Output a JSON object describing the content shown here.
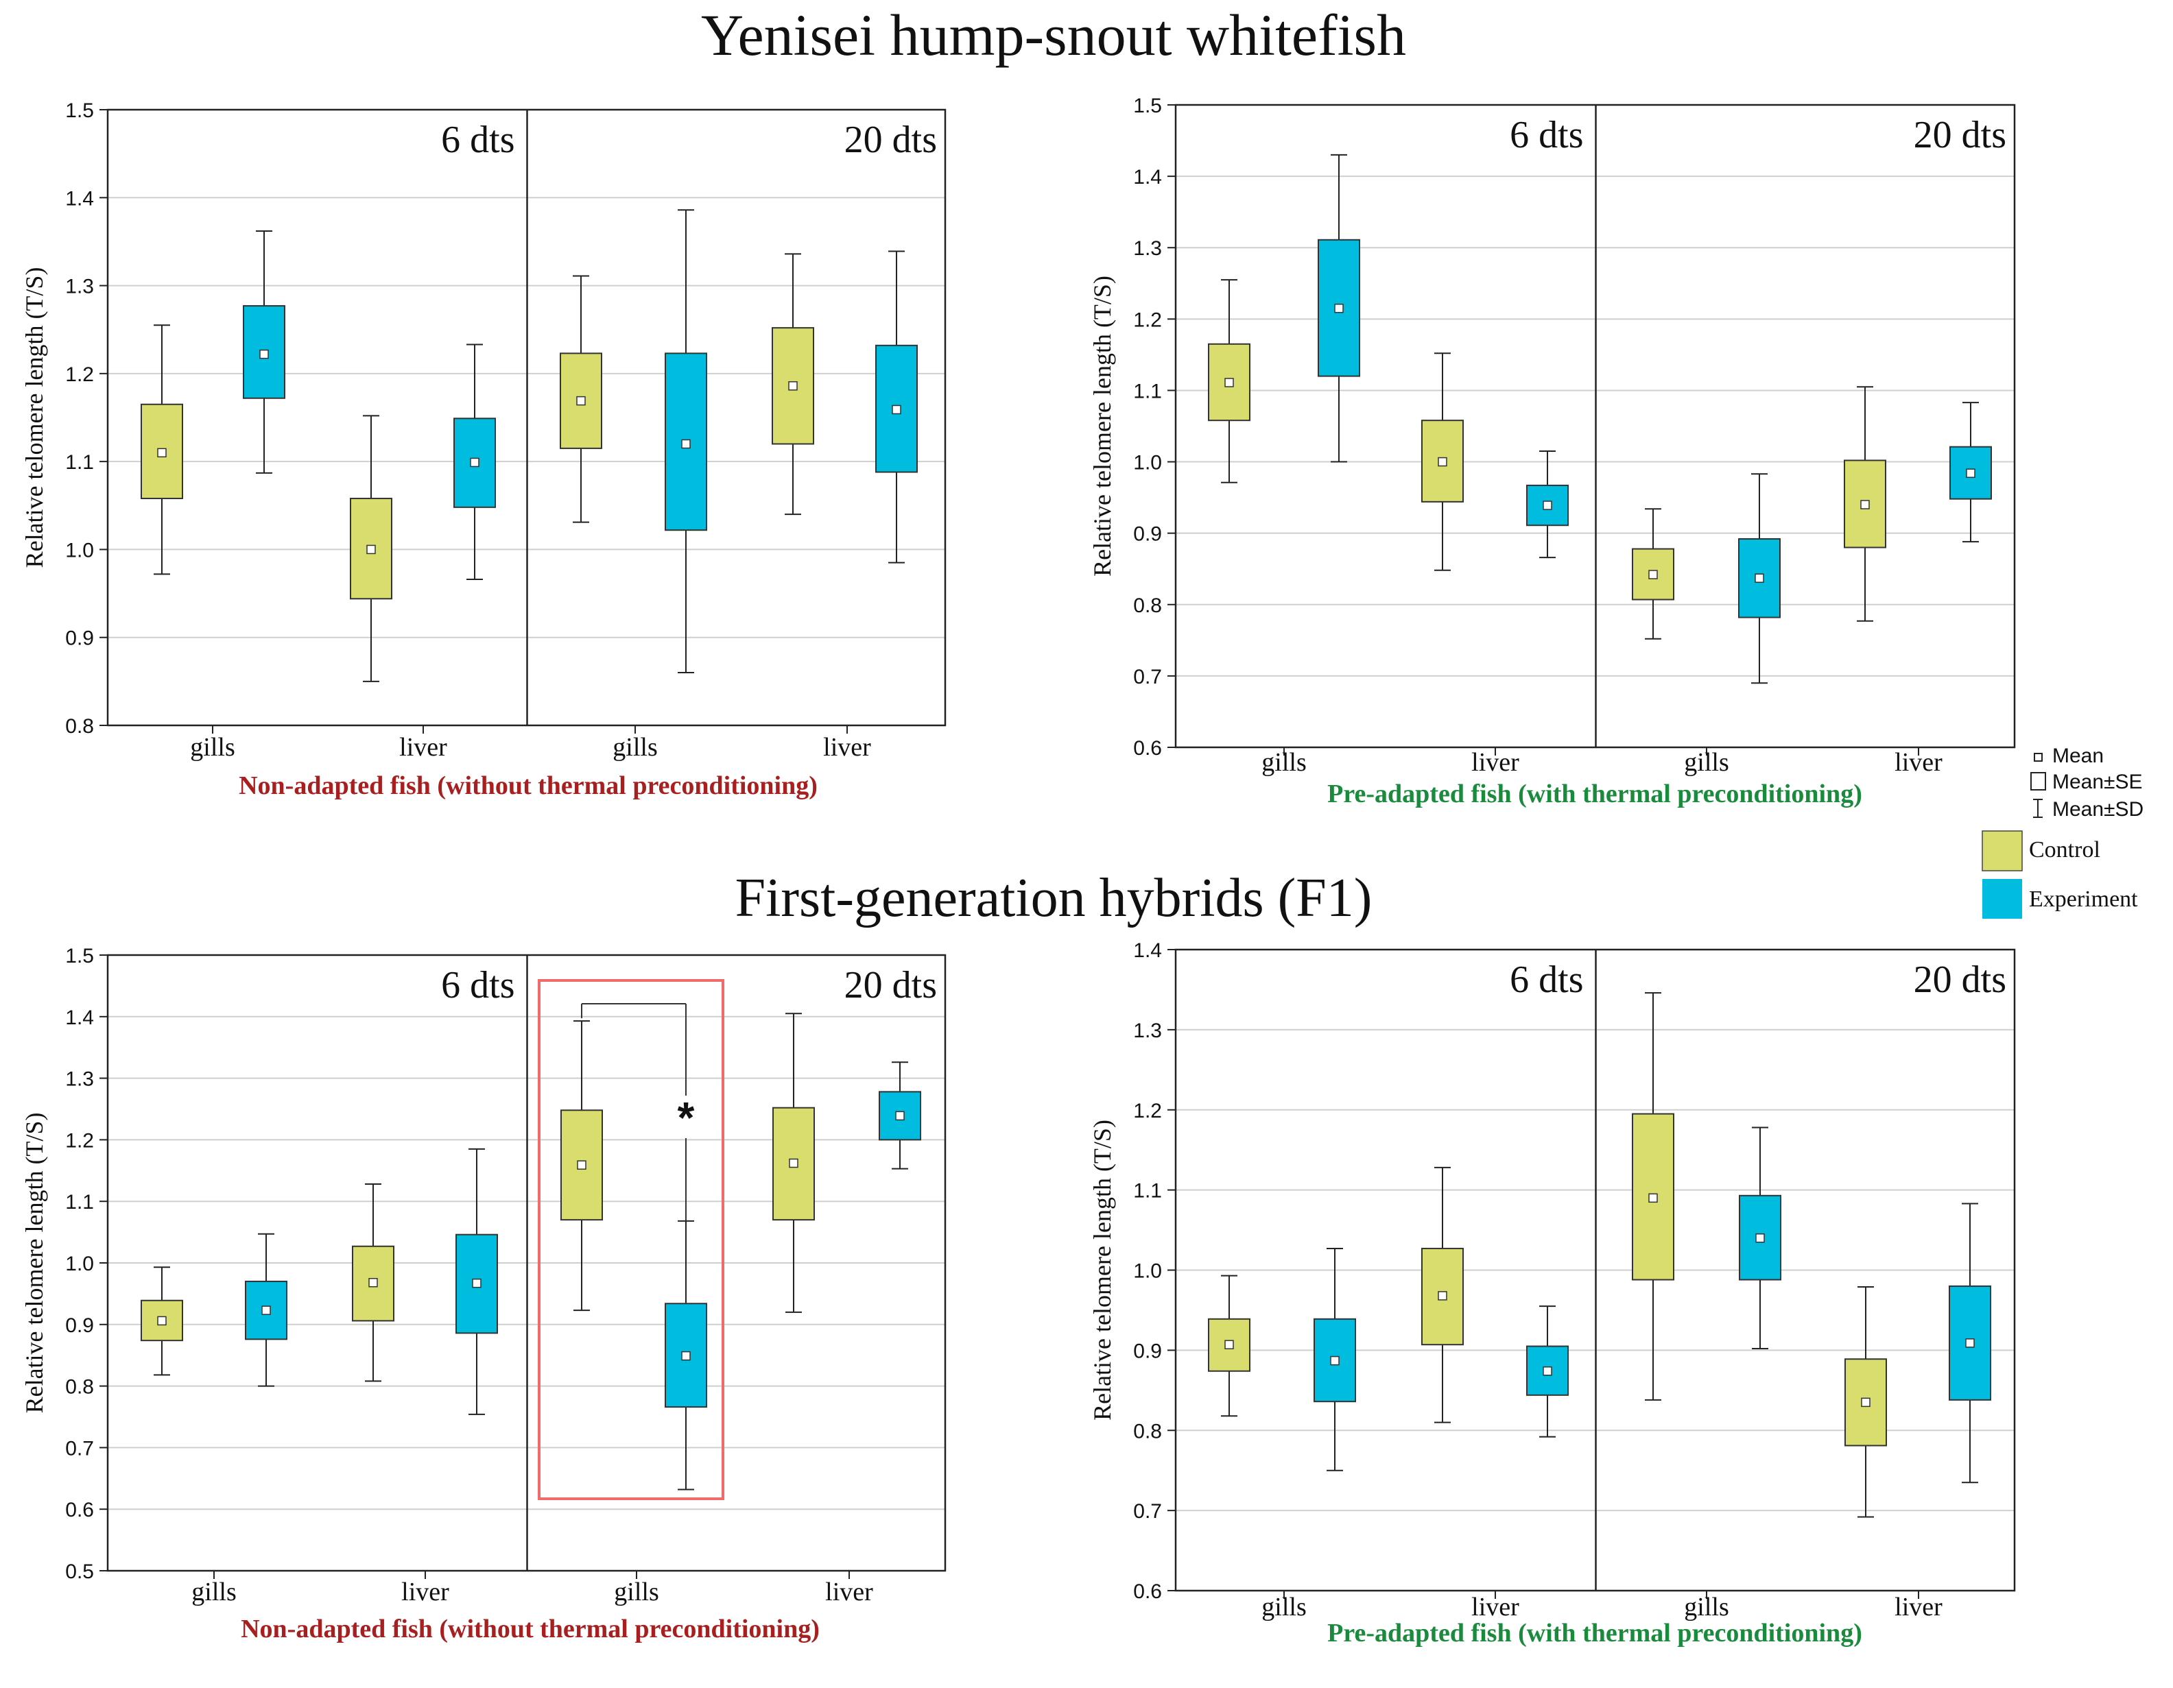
{
  "figure": {
    "top_title": "Yenisei hump-snout whitefish",
    "bottom_title": "First-generation hybrids (F1)"
  },
  "colors": {
    "control": "#D9DD6E",
    "experiment": "#00BCDE",
    "highlight": "#F26B6B",
    "nonadapted_label": "#A81F1F",
    "preadapted_label": "#1A8A3C"
  },
  "legend": {
    "mean": "Mean",
    "se": "Mean±SE",
    "sd": "Mean±SD",
    "control": "Control",
    "experiment": "Experiment"
  },
  "chart_data": [
    {
      "id": "p1",
      "type": "box",
      "ylabel": "Relative telomere length (T/S)",
      "ylim": [
        0.8,
        1.5
      ],
      "yticks": [
        "0.8",
        "0.9",
        "1.0",
        "1.1",
        "1.2",
        "1.3",
        "1.4",
        "1.5"
      ],
      "section_labels": [
        "6 dts",
        "20 dts"
      ],
      "categories": [
        "gills",
        "liver",
        "gills",
        "liver"
      ],
      "caption": "Non-adapted fish (without thermal preconditioning)",
      "boxes": [
        {
          "group": "Control",
          "mean": 1.11,
          "se": [
            1.058,
            1.165
          ],
          "sd": [
            0.972,
            1.255
          ]
        },
        {
          "group": "Experiment",
          "mean": 1.222,
          "se": [
            1.172,
            1.277
          ],
          "sd": [
            1.087,
            1.362
          ]
        },
        {
          "group": "Control",
          "mean": 1.0,
          "se": [
            0.944,
            1.058
          ],
          "sd": [
            0.85,
            1.152
          ]
        },
        {
          "group": "Experiment",
          "mean": 1.099,
          "se": [
            1.048,
            1.149
          ],
          "sd": [
            0.966,
            1.233
          ]
        },
        {
          "group": "Control",
          "mean": 1.169,
          "se": [
            1.115,
            1.223
          ],
          "sd": [
            1.031,
            1.311
          ]
        },
        {
          "group": "Experiment",
          "mean": 1.12,
          "se": [
            1.022,
            1.223
          ],
          "sd": [
            0.86,
            1.386
          ]
        },
        {
          "group": "Control",
          "mean": 1.186,
          "se": [
            1.12,
            1.252
          ],
          "sd": [
            1.04,
            1.336
          ]
        },
        {
          "group": "Experiment",
          "mean": 1.159,
          "se": [
            1.088,
            1.232
          ],
          "sd": [
            0.985,
            1.339
          ]
        }
      ]
    },
    {
      "id": "p2",
      "type": "box",
      "ylabel": "Relative telomere length (T/S)",
      "ylim": [
        0.6,
        1.5
      ],
      "yticks": [
        "0.6",
        "0.7",
        "0.8",
        "0.9",
        "1.0",
        "1.1",
        "1.2",
        "1.3",
        "1.4",
        "1.5"
      ],
      "section_labels": [
        "6 dts",
        "20 dts"
      ],
      "categories": [
        "gills",
        "liver",
        "gills",
        "liver"
      ],
      "caption": "Pre-adapted fish (with thermal preconditioning)",
      "boxes": [
        {
          "group": "Control",
          "mean": 1.111,
          "se": [
            1.058,
            1.165
          ],
          "sd": [
            0.971,
            1.255
          ]
        },
        {
          "group": "Experiment",
          "mean": 1.215,
          "se": [
            1.12,
            1.311
          ],
          "sd": [
            1.0,
            1.43
          ]
        },
        {
          "group": "Control",
          "mean": 1.0,
          "se": [
            0.944,
            1.058
          ],
          "sd": [
            0.848,
            1.152
          ]
        },
        {
          "group": "Experiment",
          "mean": 0.939,
          "se": [
            0.911,
            0.967
          ],
          "sd": [
            0.866,
            1.015
          ]
        },
        {
          "group": "Control",
          "mean": 0.842,
          "se": [
            0.807,
            0.878
          ],
          "sd": [
            0.752,
            0.934
          ]
        },
        {
          "group": "Experiment",
          "mean": 0.837,
          "se": [
            0.782,
            0.892
          ],
          "sd": [
            0.69,
            0.983
          ]
        },
        {
          "group": "Control",
          "mean": 0.94,
          "se": [
            0.88,
            1.002
          ],
          "sd": [
            0.777,
            1.105
          ]
        },
        {
          "group": "Experiment",
          "mean": 0.984,
          "se": [
            0.948,
            1.021
          ],
          "sd": [
            0.888,
            1.083
          ]
        }
      ]
    },
    {
      "id": "p3",
      "type": "box",
      "ylabel": "Relative telomere length (T/S)",
      "ylim": [
        0.5,
        1.5
      ],
      "yticks": [
        "0.5",
        "0.6",
        "0.7",
        "0.8",
        "0.9",
        "1.0",
        "1.1",
        "1.2",
        "1.3",
        "1.4",
        "1.5"
      ],
      "section_labels": [
        "6 dts",
        "20 dts"
      ],
      "categories": [
        "gills",
        "liver",
        "gills",
        "liver"
      ],
      "caption": "Non-adapted fish (without thermal preconditioning)",
      "significance": "*",
      "boxes": [
        {
          "group": "Control",
          "mean": 0.906,
          "se": [
            0.874,
            0.939
          ],
          "sd": [
            0.818,
            0.993
          ]
        },
        {
          "group": "Experiment",
          "mean": 0.923,
          "se": [
            0.876,
            0.97
          ],
          "sd": [
            0.8,
            1.047
          ]
        },
        {
          "group": "Control",
          "mean": 0.968,
          "se": [
            0.906,
            1.027
          ],
          "sd": [
            0.808,
            1.128
          ]
        },
        {
          "group": "Experiment",
          "mean": 0.967,
          "se": [
            0.886,
            1.046
          ],
          "sd": [
            0.754,
            1.185
          ]
        },
        {
          "group": "Control",
          "mean": 1.159,
          "se": [
            1.07,
            1.248
          ],
          "sd": [
            0.923,
            1.393
          ]
        },
        {
          "group": "Experiment",
          "mean": 0.849,
          "se": [
            0.766,
            0.934
          ],
          "sd": [
            0.632,
            1.068
          ]
        },
        {
          "group": "Control",
          "mean": 1.162,
          "se": [
            1.07,
            1.252
          ],
          "sd": [
            0.92,
            1.405
          ]
        },
        {
          "group": "Experiment",
          "mean": 1.239,
          "se": [
            1.2,
            1.278
          ],
          "sd": [
            1.153,
            1.326
          ]
        }
      ]
    },
    {
      "id": "p4",
      "type": "box",
      "ylabel": "Relative telomere length (T/S)",
      "ylim": [
        0.6,
        1.4
      ],
      "yticks": [
        "0.6",
        "0.7",
        "0.8",
        "0.9",
        "1.0",
        "1.1",
        "1.2",
        "1.3",
        "1.4"
      ],
      "section_labels": [
        "6 dts",
        "20 dts"
      ],
      "categories": [
        "gills",
        "liver",
        "gills",
        "liver"
      ],
      "caption": "Pre-adapted fish (with thermal preconditioning)",
      "boxes": [
        {
          "group": "Control",
          "mean": 0.907,
          "se": [
            0.874,
            0.939
          ],
          "sd": [
            0.818,
            0.993
          ]
        },
        {
          "group": "Experiment",
          "mean": 0.887,
          "se": [
            0.836,
            0.939
          ],
          "sd": [
            0.75,
            1.027
          ]
        },
        {
          "group": "Control",
          "mean": 0.968,
          "se": [
            0.907,
            1.027
          ],
          "sd": [
            0.81,
            1.128
          ]
        },
        {
          "group": "Experiment",
          "mean": 0.874,
          "se": [
            0.844,
            0.905
          ],
          "sd": [
            0.792,
            0.955
          ]
        },
        {
          "group": "Control",
          "mean": 1.09,
          "se": [
            0.988,
            1.195
          ],
          "sd": [
            0.838,
            1.346
          ]
        },
        {
          "group": "Experiment",
          "mean": 1.04,
          "se": [
            0.988,
            1.093
          ],
          "sd": [
            0.902,
            1.178
          ]
        },
        {
          "group": "Control",
          "mean": 0.835,
          "se": [
            0.781,
            0.889
          ],
          "sd": [
            0.692,
            0.979
          ]
        },
        {
          "group": "Experiment",
          "mean": 0.909,
          "se": [
            0.838,
            0.98
          ],
          "sd": [
            0.735,
            1.083
          ]
        }
      ]
    }
  ]
}
